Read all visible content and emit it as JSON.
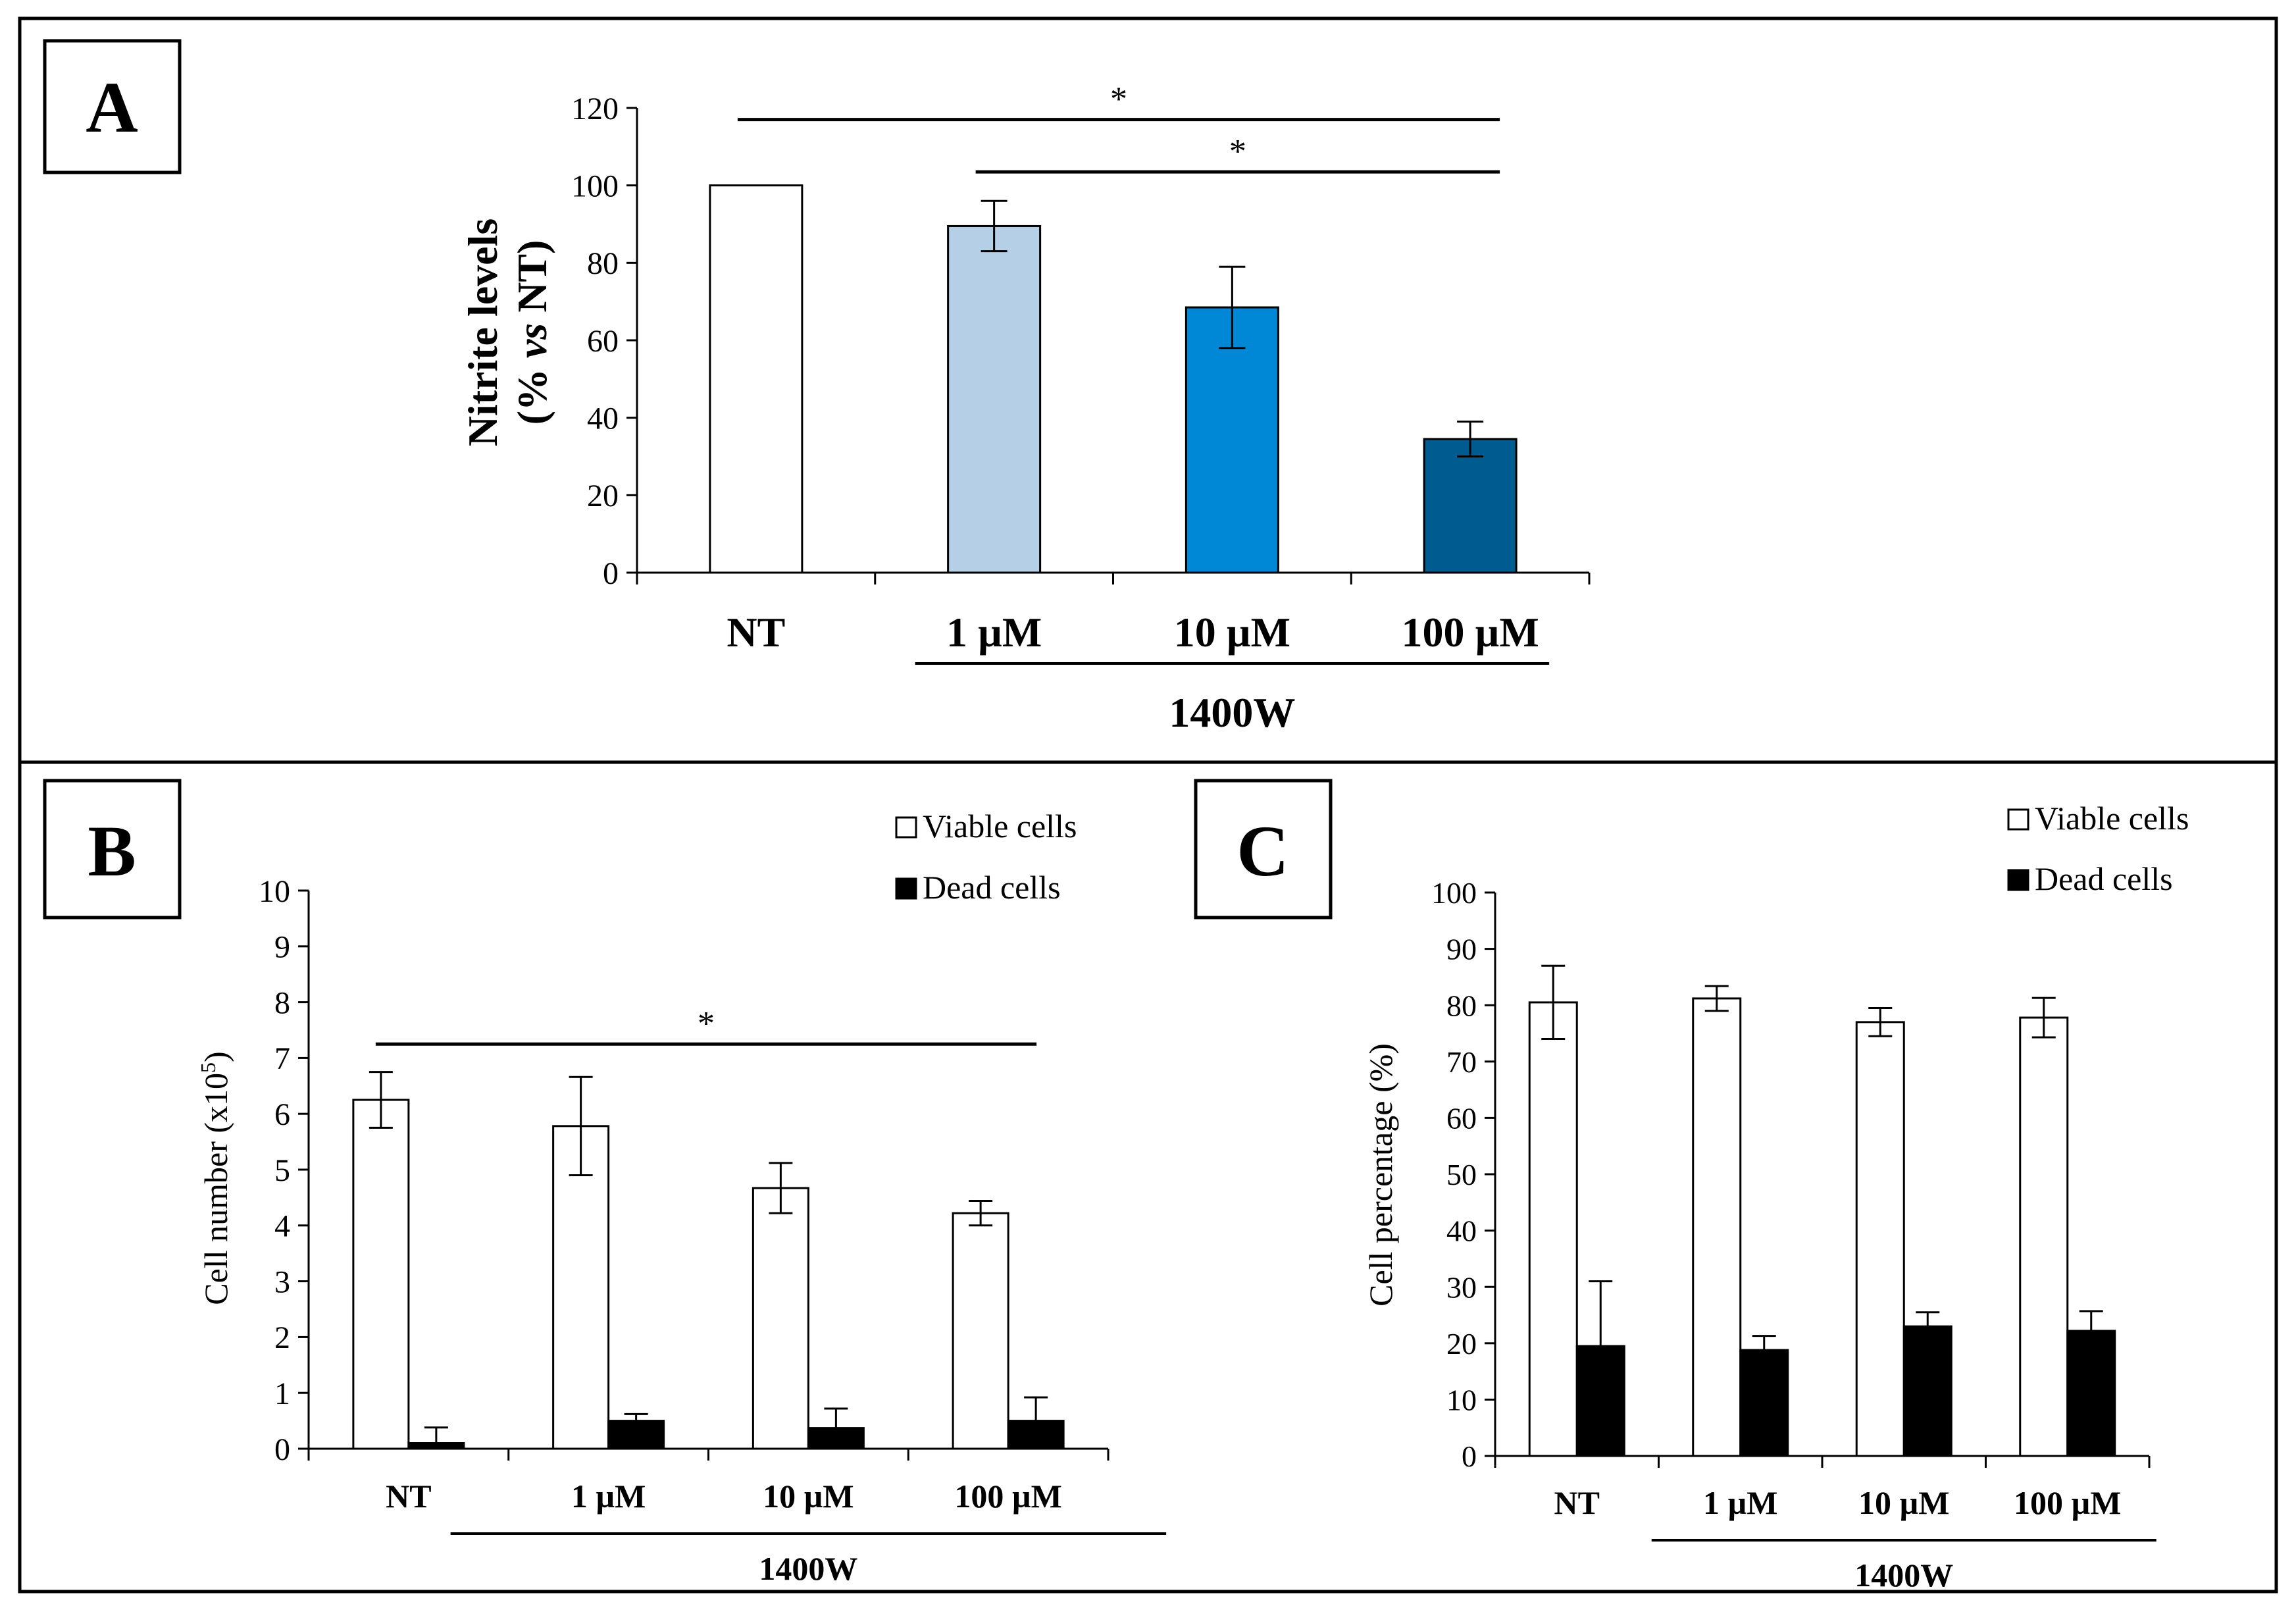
{
  "colors": {
    "frame": "#000000",
    "nt_bar": "#ffffff",
    "light_blue": "#b4cfe6",
    "mid_blue": "#0088d6",
    "dark_blue": "#005c90",
    "viable_fill": "#ffffff",
    "dead_fill": "#000000"
  },
  "chart_data": [
    {
      "panel": "A",
      "type": "bar",
      "title": "",
      "categories": [
        "NT",
        "1 µM",
        "10 µM",
        "100 µM"
      ],
      "group_label": "1400W",
      "group_members": [
        "1 µM",
        "10 µM",
        "100 µM"
      ],
      "ylabel_line1": "Nitrite levels",
      "ylabel_line2_pre": "(% ",
      "ylabel_line2_italic": "vs",
      "ylabel_line2_post": " NT)",
      "ylim": [
        0,
        120
      ],
      "yticks": [
        0,
        20,
        40,
        60,
        80,
        100,
        120
      ],
      "values": [
        100,
        89.5,
        68.5,
        34.5
      ],
      "errors": [
        0,
        6.5,
        10.5,
        4.5
      ],
      "bar_colors": [
        "#ffffff",
        "#b4cfe6",
        "#0088d6",
        "#005c90"
      ],
      "significance": [
        {
          "from": "NT",
          "to": "100 µM",
          "label": "*",
          "level": 117
        },
        {
          "from": "1 µM",
          "to": "100 µM",
          "label": "*",
          "level": 103.5
        }
      ]
    },
    {
      "panel": "B",
      "type": "bar",
      "title": "",
      "categories": [
        "NT",
        "1 µM",
        "10 µM",
        "100 µM"
      ],
      "group_label": "1400W",
      "group_members": [
        "1 µM",
        "10 µM",
        "100 µM"
      ],
      "ylabel_pre": "Cell number (x10",
      "ylabel_sup": "5",
      "ylabel_post": ")",
      "ylim": [
        0,
        10
      ],
      "yticks": [
        0,
        1,
        2,
        3,
        4,
        5,
        6,
        7,
        8,
        9,
        10
      ],
      "series": [
        {
          "name": "Viable cells",
          "values": [
            6.25,
            5.78,
            4.67,
            4.22
          ],
          "errors": [
            0.5,
            0.88,
            0.45,
            0.22
          ]
        },
        {
          "name": "Dead cells",
          "values": [
            0.1,
            0.5,
            0.37,
            0.5
          ],
          "errors": [
            0.28,
            0.12,
            0.35,
            0.42
          ]
        }
      ],
      "legend_position": "top-right",
      "significance": [
        {
          "from": "NT",
          "to": "100 µM",
          "label": "*",
          "level": 7.25
        }
      ]
    },
    {
      "panel": "C",
      "type": "bar",
      "title": "",
      "categories": [
        "NT",
        "1 µM",
        "10 µM",
        "100 µM"
      ],
      "group_label": "1400W",
      "group_members": [
        "1 µM",
        "10 µM",
        "100 µM"
      ],
      "ylabel": "Cell percentage (%)",
      "ylim": [
        0,
        100
      ],
      "yticks": [
        0,
        10,
        20,
        30,
        40,
        50,
        60,
        70,
        80,
        90,
        100
      ],
      "series": [
        {
          "name": "Viable cells",
          "values": [
            80.5,
            81.2,
            77,
            77.8
          ],
          "errors": [
            6.5,
            2.2,
            2.5,
            3.5
          ]
        },
        {
          "name": "Dead cells",
          "values": [
            19.5,
            18.8,
            23,
            22.2
          ],
          "errors": [
            11.5,
            2.5,
            2.5,
            3.5
          ]
        }
      ],
      "legend_position": "top-right",
      "significance": []
    }
  ]
}
